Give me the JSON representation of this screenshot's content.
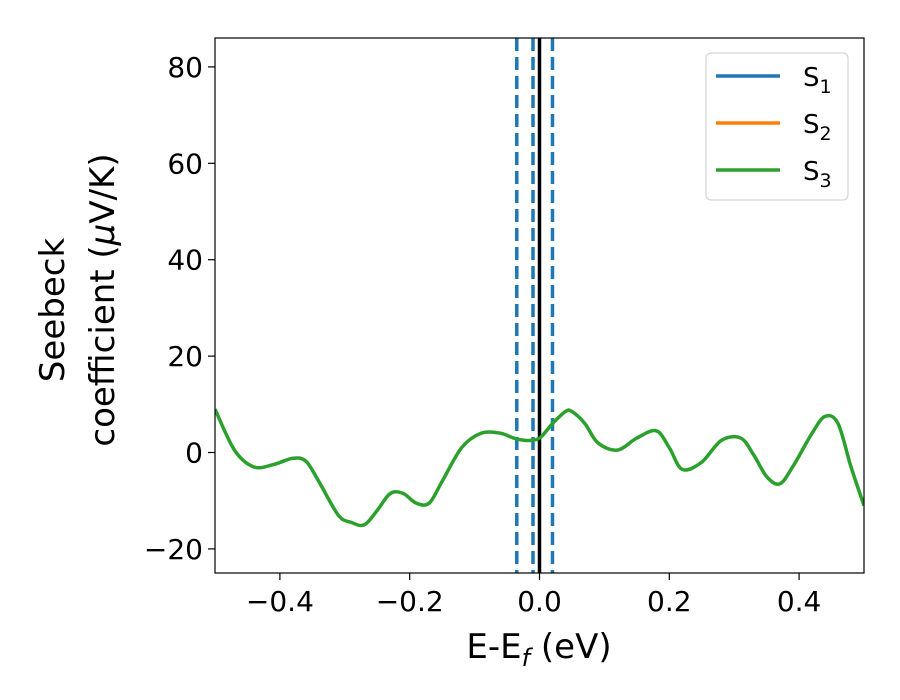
{
  "chart_data": {
    "type": "line",
    "xlabel": {
      "main": "E-E",
      "sub": "f",
      "suffix": " (eV)"
    },
    "ylabel": {
      "line1": "Seebeck",
      "line2_pre": "coefficient  (",
      "mu": "μ",
      "line2_post": "V/K)"
    },
    "xlim": [
      -0.5,
      0.5
    ],
    "ylim": [
      -25,
      86
    ],
    "x_ticks": [
      -0.4,
      -0.2,
      0.0,
      0.2,
      0.4
    ],
    "x_tick_labels": [
      "−0.4",
      "−0.2",
      "0.0",
      "0.2",
      "0.4"
    ],
    "y_ticks": [
      -20,
      0,
      20,
      40,
      60,
      80
    ],
    "y_tick_labels": [
      "−20",
      "0",
      "20",
      "40",
      "60",
      "80"
    ],
    "grid": false,
    "legend_position": "top-right",
    "vertical_lines": [
      {
        "x": -0.035,
        "style": "dashed",
        "color": "#1f77b4"
      },
      {
        "x": -0.01,
        "style": "dashed",
        "color": "#1f77b4"
      },
      {
        "x": 0.0,
        "style": "solid",
        "color": "#000000"
      },
      {
        "x": 0.02,
        "style": "dashed",
        "color": "#1f77b4"
      }
    ],
    "series": [
      {
        "name": {
          "base": "S",
          "sub": "1"
        },
        "color": "#1f77b4",
        "visible_in_plot": false
      },
      {
        "name": {
          "base": "S",
          "sub": "2"
        },
        "color": "#ff7f0e",
        "visible_in_plot": false
      },
      {
        "name": {
          "base": "S",
          "sub": "3"
        },
        "color": "#2ca02c",
        "x": [
          -0.5,
          -0.47,
          -0.44,
          -0.41,
          -0.38,
          -0.36,
          -0.34,
          -0.31,
          -0.29,
          -0.27,
          -0.25,
          -0.23,
          -0.21,
          -0.19,
          -0.17,
          -0.15,
          -0.12,
          -0.09,
          -0.06,
          -0.04,
          -0.02,
          0.0,
          0.02,
          0.04,
          0.05,
          0.07,
          0.09,
          0.12,
          0.15,
          0.18,
          0.2,
          0.22,
          0.25,
          0.28,
          0.31,
          0.33,
          0.35,
          0.37,
          0.39,
          0.42,
          0.44,
          0.46,
          0.48,
          0.5
        ],
        "y": [
          9,
          0.5,
          -3,
          -2.5,
          -1.2,
          -1.8,
          -6,
          -13,
          -14.5,
          -15,
          -12,
          -8.5,
          -8.5,
          -10.5,
          -10.5,
          -6,
          1,
          4,
          4,
          3,
          2.5,
          3,
          6,
          8.5,
          8.5,
          6,
          2,
          0.5,
          3,
          4.5,
          1,
          -3.5,
          -2,
          2.5,
          3,
          -0.5,
          -5,
          -6.5,
          -3,
          4,
          7.5,
          6,
          -3,
          -11
        ]
      }
    ]
  }
}
